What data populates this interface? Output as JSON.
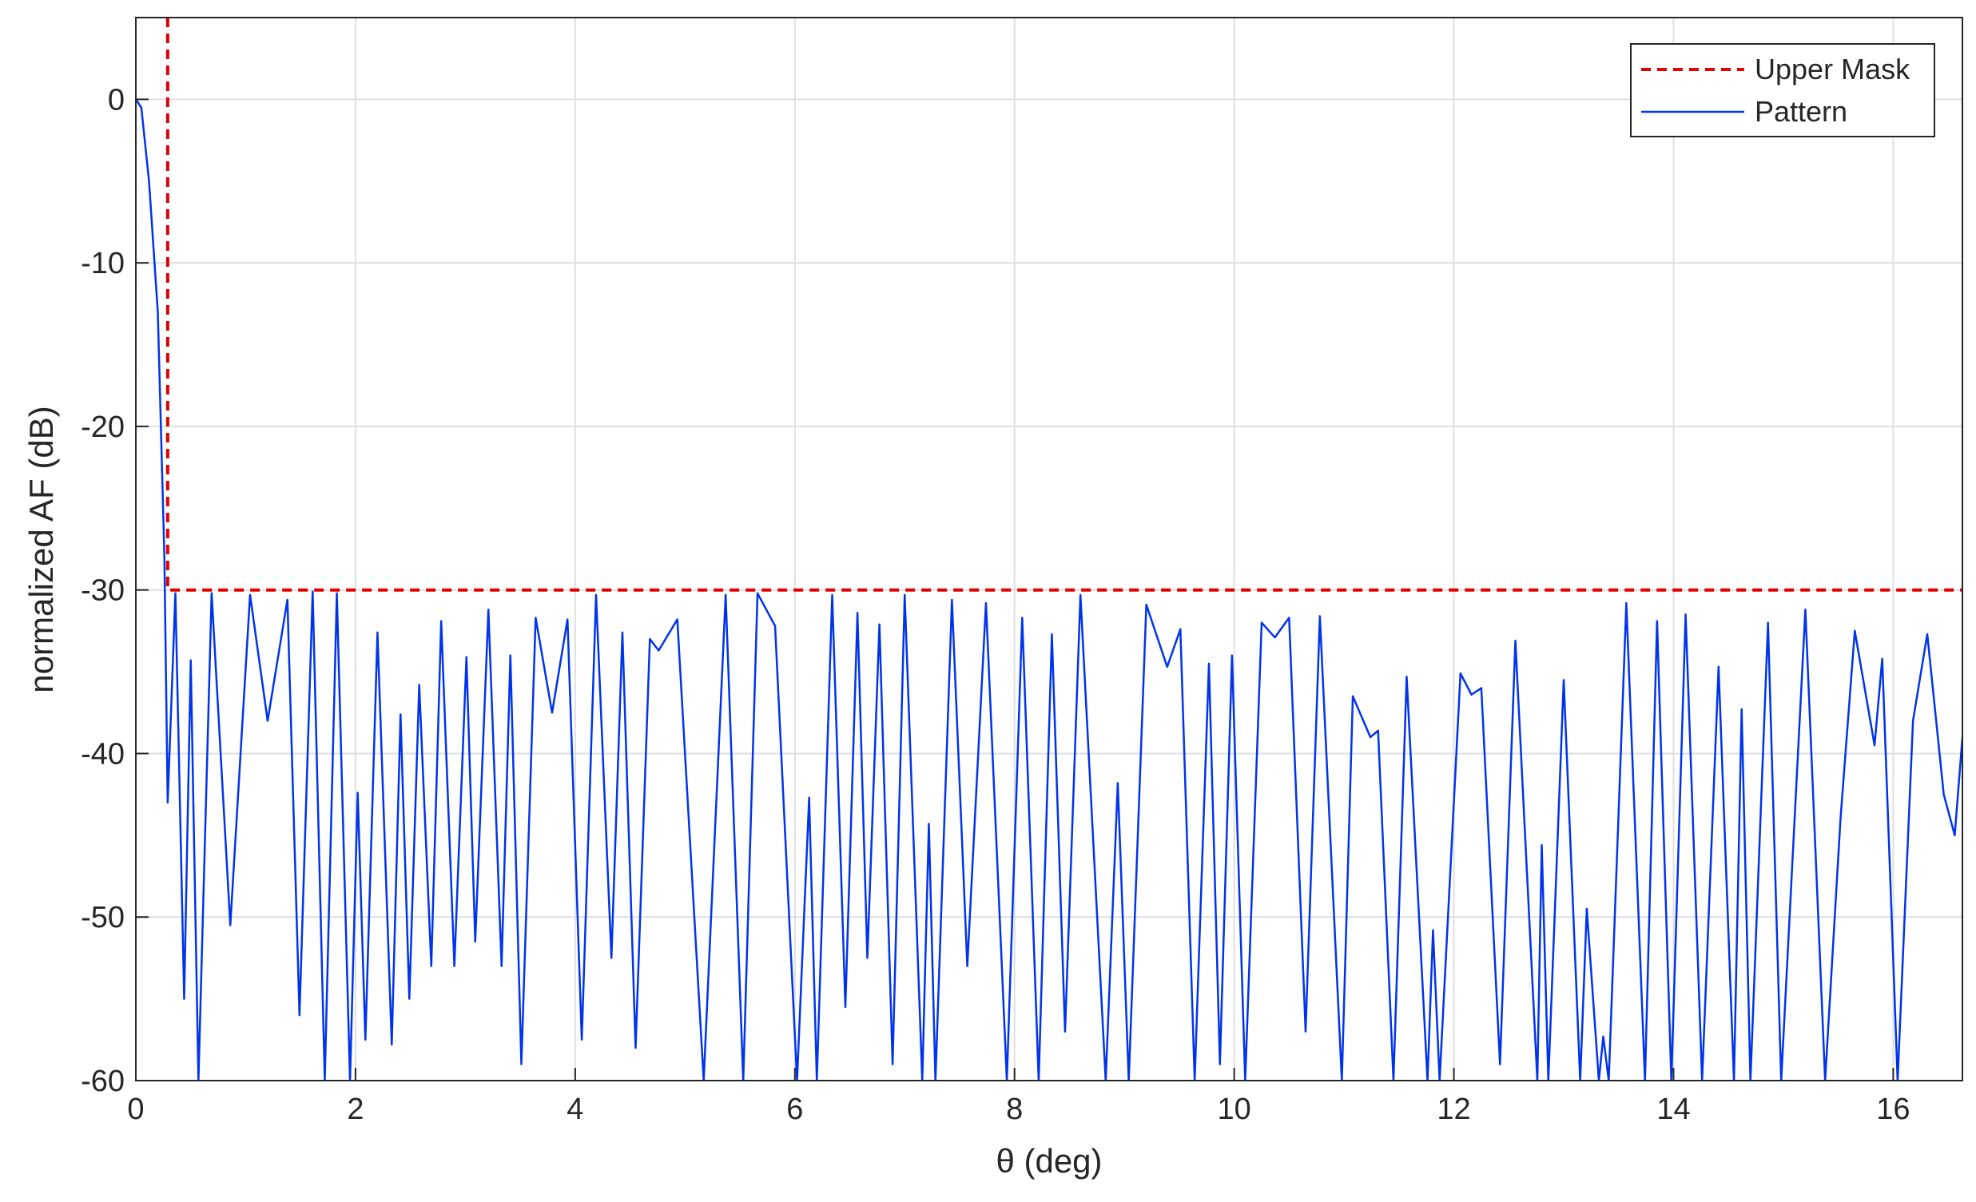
{
  "chart_data": {
    "type": "line",
    "xlabel": "θ (deg)",
    "ylabel": "normalized AF (dB)",
    "xlim": [
      0,
      16.63
    ],
    "ylim": [
      -60,
      5
    ],
    "xticks": [
      0,
      2,
      4,
      6,
      8,
      10,
      12,
      14,
      16
    ],
    "yticks": [
      -60,
      -50,
      -40,
      -30,
      -20,
      -10,
      0
    ],
    "grid": true,
    "legend": "upper right",
    "series": [
      {
        "name": "Upper Mask",
        "color": "#e00000",
        "linestyle": "dashed",
        "x": [
          0.29,
          0.29,
          16.63
        ],
        "values": [
          5,
          -30,
          -30
        ]
      },
      {
        "name": "Pattern",
        "color": "#0033ee",
        "linestyle": "solid",
        "x": [
          0,
          0.05,
          0.12,
          0.2,
          0.26,
          0.29,
          0.36,
          0.44,
          0.5,
          0.57,
          0.69,
          0.86,
          1.04,
          1.2,
          1.38,
          1.49,
          1.61,
          1.72,
          1.83,
          1.95,
          2.02,
          2.09,
          2.2,
          2.33,
          2.41,
          2.49,
          2.58,
          2.69,
          2.78,
          2.9,
          3.01,
          3.09,
          3.21,
          3.33,
          3.41,
          3.51,
          3.64,
          3.79,
          3.93,
          4.06,
          4.19,
          4.33,
          4.43,
          4.55,
          4.68,
          4.76,
          4.93,
          5.17,
          5.37,
          5.53,
          5.66,
          5.82,
          6.02,
          6.13,
          6.2,
          6.34,
          6.46,
          6.57,
          6.66,
          6.77,
          6.89,
          7.0,
          7.16,
          7.22,
          7.28,
          7.43,
          7.57,
          7.74,
          7.93,
          8.07,
          8.22,
          8.34,
          8.46,
          8.6,
          8.83,
          8.94,
          9.04,
          9.2,
          9.39,
          9.51,
          9.64,
          9.77,
          9.87,
          9.98,
          10.1,
          10.25,
          10.37,
          10.5,
          10.65,
          10.78,
          10.98,
          11.08,
          11.24,
          11.31,
          11.45,
          11.57,
          11.76,
          11.81,
          11.87,
          12.06,
          12.16,
          12.25,
          12.42,
          12.56,
          12.76,
          12.8,
          12.86,
          13.0,
          13.15,
          13.21,
          13.32,
          13.36,
          13.41,
          13.57,
          13.74,
          13.85,
          13.98,
          14.11,
          14.26,
          14.41,
          14.55,
          14.62,
          14.7,
          14.86,
          14.98,
          15.2,
          15.38,
          15.52,
          15.65,
          15.83,
          15.9,
          16.04,
          16.18,
          16.31,
          16.46,
          16.56,
          16.63
        ],
        "values": [
          0,
          -0.5,
          -5,
          -13,
          -28,
          -43,
          -30.2,
          -55,
          -34.3,
          -60,
          -30.2,
          -50.5,
          -30.3,
          -38,
          -30.6,
          -56,
          -30.1,
          -60,
          -30.2,
          -60,
          -42.4,
          -57.5,
          -32.6,
          -57.8,
          -37.6,
          -55,
          -35.8,
          -53,
          -31.9,
          -53,
          -34.1,
          -51.5,
          -31.2,
          -53,
          -34,
          -59,
          -31.7,
          -37.5,
          -31.8,
          -57.5,
          -30.3,
          -52.5,
          -32.6,
          -58,
          -33,
          -33.7,
          -31.8,
          -60,
          -30.3,
          -60,
          -30.2,
          -32.2,
          -60,
          -42.7,
          -60,
          -30.3,
          -55.5,
          -31.4,
          -52.5,
          -32.1,
          -59,
          -30.3,
          -60,
          -44.3,
          -60,
          -30.6,
          -53,
          -30.8,
          -60,
          -31.7,
          -60,
          -32.7,
          -57,
          -30.3,
          -60,
          -41.8,
          -60,
          -30.9,
          -34.7,
          -32.4,
          -60,
          -34.5,
          -59,
          -34,
          -60,
          -32,
          -32.9,
          -31.7,
          -57,
          -31.6,
          -60,
          -36.5,
          -39,
          -38.6,
          -60,
          -35.3,
          -60,
          -50.8,
          -60,
          -35.1,
          -36.4,
          -36,
          -59,
          -33.1,
          -60,
          -45.6,
          -60,
          -35.5,
          -60,
          -49.5,
          -60,
          -57.3,
          -60,
          -30.8,
          -60,
          -31.9,
          -60,
          -31.5,
          -60,
          -34.7,
          -60,
          -37.3,
          -60,
          -32,
          -60,
          -31.2,
          -60,
          -44,
          -32.5,
          -39.5,
          -34.2,
          -60,
          -38,
          -32.7,
          -42.5,
          -45,
          -39
        ]
      }
    ]
  }
}
